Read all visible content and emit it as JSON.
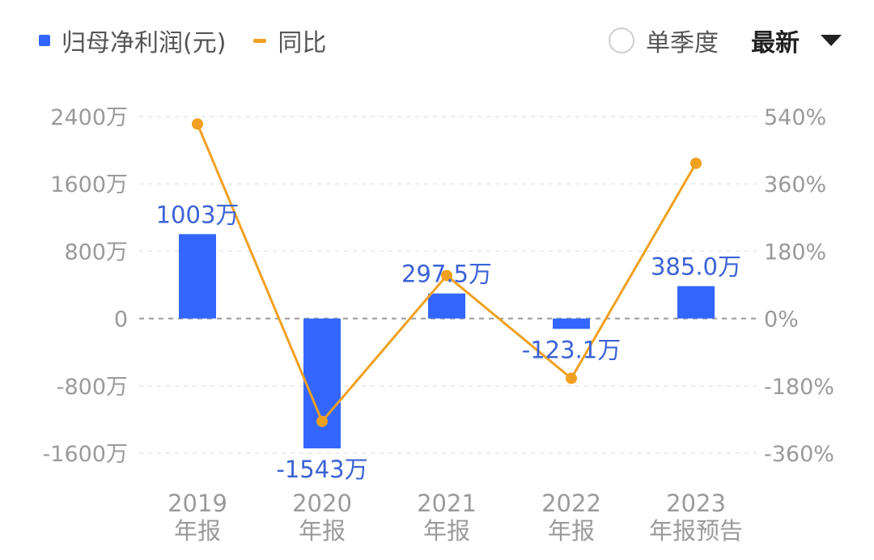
{
  "legend": {
    "bar_label": "归母净利润(元)",
    "line_label": "同比"
  },
  "controls": {
    "quarter_label": "单季度",
    "sort_label": "最新"
  },
  "chart_data": {
    "type": "bar",
    "categories": [
      [
        "2019",
        "年报"
      ],
      [
        "2020",
        "年报"
      ],
      [
        "2021",
        "年报"
      ],
      [
        "2022",
        "年报"
      ],
      [
        "2023",
        "年报预告"
      ]
    ],
    "series": [
      {
        "name": "归母净利润(元)",
        "type": "bar",
        "axis": "left",
        "color": "#3366ff",
        "values": [
          1003,
          -1543,
          297.5,
          -123.1,
          385.0
        ],
        "labels": [
          "1003万",
          "-1543万",
          "297.5万",
          "-123.1万",
          "385.0万"
        ]
      },
      {
        "name": "同比",
        "type": "line",
        "axis": "right",
        "color": "#f0a020",
        "values": [
          520,
          -275,
          115,
          -160,
          415
        ]
      }
    ],
    "y_left": {
      "ylim": [
        -1600,
        2400
      ],
      "ticks": [
        2400,
        1600,
        800,
        0,
        -800,
        -1600
      ],
      "tick_labels": [
        "2400万",
        "1600万",
        "800万",
        "0",
        "-800万",
        "-1600万"
      ]
    },
    "y_right": {
      "ylim": [
        -360,
        540
      ],
      "tick_labels": [
        "540%",
        "360%",
        "180%",
        "0%",
        "-180%",
        "-360%"
      ]
    },
    "grid": true
  }
}
